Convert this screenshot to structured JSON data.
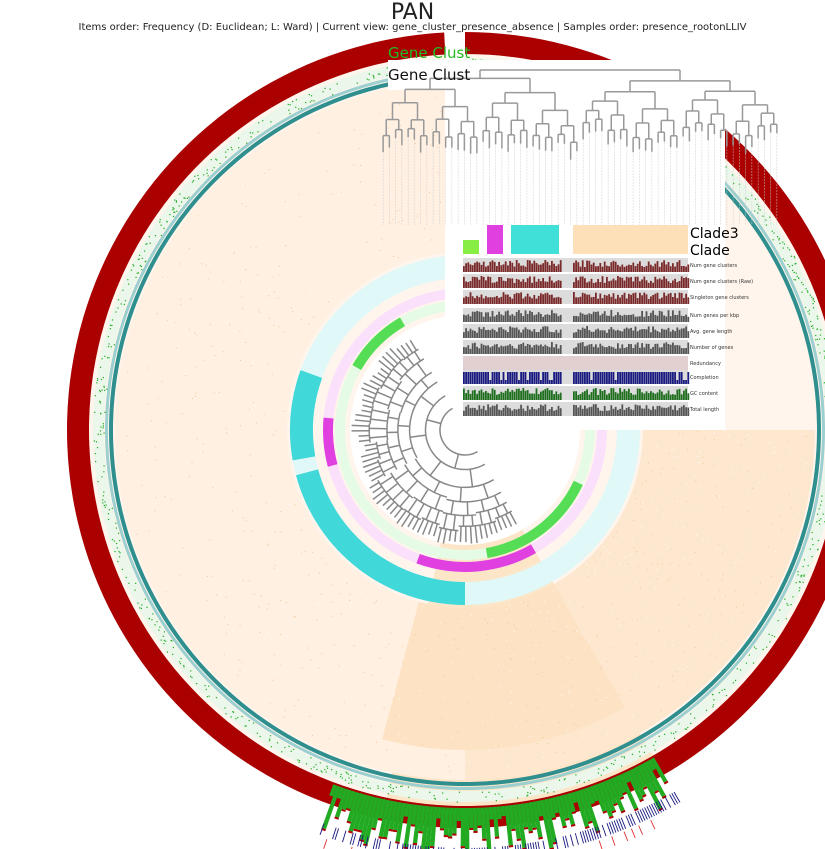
{
  "header": {
    "title": "PAN",
    "subtitle": "Items order: Frequency (D: Euclidean; L: Ward) | Current view: gene_cluster_presence_absence | Samples order: presence_rootonLLIV"
  },
  "labels": {
    "gene_clusters_green": "Gene Clust",
    "gene_clusters_black": "Gene Clust",
    "clade3": "Clade3",
    "clade": "Clade"
  },
  "layers": [
    {
      "label": "Num gene clusters"
    },
    {
      "label": "Num gene clusters (Raw)"
    },
    {
      "label": "Singleton gene clusters"
    },
    {
      "label": "Num genes per kbp"
    },
    {
      "label": "Avg. gene length"
    },
    {
      "label": "Number of genes"
    },
    {
      "label": "Redundancy"
    },
    {
      "label": "Completion"
    },
    {
      "label": "GC content"
    },
    {
      "label": "Total length"
    }
  ],
  "colors": {
    "dark_red": "#aa0000",
    "teal": "#2f8f8f",
    "green": "#22aa22",
    "peach": "#fde3c4",
    "cyan": "#40d8d8",
    "magenta": "#e040e0",
    "lime": "#55dd55",
    "maroon": "#7a2a2a",
    "gray_bar": "#555555",
    "navy": "#1a1a80",
    "forest": "#1e6e1e",
    "red_tick": "#e03030"
  }
}
